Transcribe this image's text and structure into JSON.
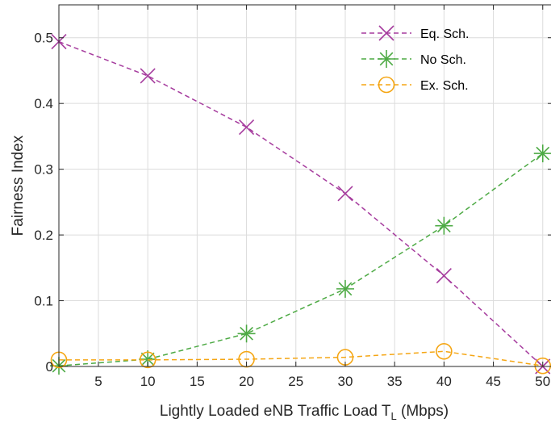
{
  "chart_data": {
    "type": "line",
    "xlabel": "Lightly Loaded eNB Traffic Load T",
    "xlabel_subscript": "L",
    "xlabel_suffix": " (Mbps)",
    "ylabel": "Fairness Index",
    "xlim": [
      1,
      51
    ],
    "ylim": [
      0,
      0.55
    ],
    "xticks": [
      5,
      10,
      15,
      20,
      25,
      30,
      35,
      40,
      45,
      50
    ],
    "yticks": [
      0,
      0.1,
      0.2,
      0.3,
      0.4,
      0.5
    ],
    "ytick_labels": [
      "0",
      "0.1",
      "0.2",
      "0.3",
      "0.4",
      "0.5"
    ],
    "grid": true,
    "legend_position": "top-right",
    "x": [
      1,
      10,
      20,
      30,
      40,
      50
    ],
    "series": [
      {
        "name": "Eq.  Sch.",
        "values": [
          0.494,
          0.442,
          0.364,
          0.263,
          0.138,
          0.0
        ],
        "color": "#A63C9E",
        "marker": "x",
        "line_style": "dashed"
      },
      {
        "name": "No  Sch.",
        "values": [
          0.001,
          0.011,
          0.05,
          0.118,
          0.214,
          0.324
        ],
        "color": "#4DAA44",
        "marker": "asterisk",
        "line_style": "dashed"
      },
      {
        "name": "Ex. Sch.",
        "values": [
          0.01,
          0.01,
          0.011,
          0.014,
          0.023,
          0.001
        ],
        "color": "#F5A614",
        "marker": "circle",
        "line_style": "dashed"
      }
    ]
  }
}
